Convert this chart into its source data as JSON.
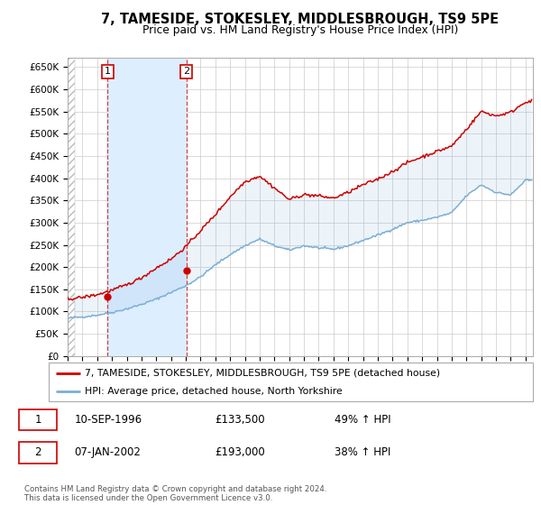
{
  "title": "7, TAMESIDE, STOKESLEY, MIDDLESBROUGH, TS9 5PE",
  "subtitle": "Price paid vs. HM Land Registry's House Price Index (HPI)",
  "ylim": [
    0,
    670000
  ],
  "yticks": [
    0,
    50000,
    100000,
    150000,
    200000,
    250000,
    300000,
    350000,
    400000,
    450000,
    500000,
    550000,
    600000,
    650000
  ],
  "sale1_date_num": 1996.7,
  "sale1_price": 133500,
  "sale1_label": "1",
  "sale1_date_str": "10-SEP-1996",
  "sale1_pct": "49% ↑ HPI",
  "sale2_date_num": 2002.03,
  "sale2_price": 193000,
  "sale2_label": "2",
  "sale2_date_str": "07-JAN-2002",
  "sale2_pct": "38% ↑ HPI",
  "red_color": "#cc0000",
  "blue_color": "#7aaed6",
  "shade_color": "#ddeeff",
  "grid_color": "#cccccc",
  "legend_line1": "7, TAMESIDE, STOKESLEY, MIDDLESBROUGH, TS9 5PE (detached house)",
  "legend_line2": "HPI: Average price, detached house, North Yorkshire",
  "footer": "Contains HM Land Registry data © Crown copyright and database right 2024.\nThis data is licensed under the Open Government Licence v3.0.",
  "xmin": 1994,
  "xmax": 2025.5,
  "hpi_years": [
    1994,
    1995,
    1996,
    1997,
    1998,
    1999,
    2000,
    2001,
    2002,
    2003,
    2004,
    2005,
    2006,
    2007,
    2008,
    2009,
    2010,
    2011,
    2012,
    2013,
    2014,
    2015,
    2016,
    2017,
    2018,
    2019,
    2020,
    2021,
    2022,
    2023,
    2024,
    2025
  ],
  "hpi_values": [
    85000,
    88000,
    92000,
    98000,
    106000,
    116000,
    128000,
    143000,
    158000,
    178000,
    205000,
    228000,
    248000,
    263000,
    248000,
    238000,
    248000,
    243000,
    240000,
    248000,
    260000,
    272000,
    285000,
    300000,
    305000,
    312000,
    322000,
    360000,
    385000,
    368000,
    362000,
    395000
  ],
  "red_years": [
    1994,
    1995,
    1996,
    1997,
    1998,
    1999,
    2000,
    2001,
    2002,
    2003,
    2004,
    2005,
    2006,
    2007,
    2008,
    2009,
    2010,
    2011,
    2012,
    2013,
    2014,
    2015,
    2016,
    2017,
    2018,
    2019,
    2020,
    2021,
    2022,
    2023,
    2024,
    2025
  ],
  "red_values": [
    128000,
    132000,
    138000,
    148000,
    160000,
    176000,
    198000,
    218000,
    246000,
    282000,
    318000,
    358000,
    392000,
    405000,
    378000,
    352000,
    363000,
    360000,
    355000,
    368000,
    385000,
    398000,
    415000,
    435000,
    448000,
    460000,
    472000,
    510000,
    550000,
    540000,
    548000,
    572000
  ],
  "noise_seed": 42,
  "hpi_noise_std": 1200,
  "red_noise_std": 1800
}
